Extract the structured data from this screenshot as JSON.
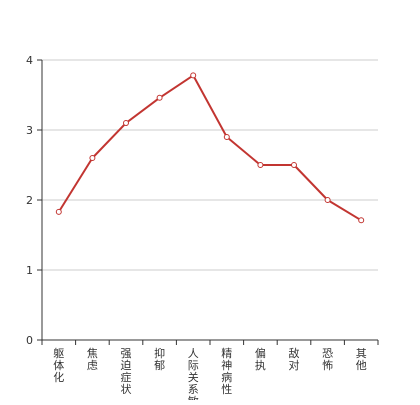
{
  "chart_data": {
    "type": "line",
    "categories": [
      "躯体化",
      "焦虑",
      "强迫症状",
      "抑郁",
      "人际关系敏感",
      "精神病性",
      "偏执",
      "敌对",
      "恐怖",
      "其他"
    ],
    "values": [
      1.83,
      2.6,
      3.1,
      3.46,
      3.78,
      2.9,
      2.5,
      2.5,
      2.0,
      1.71
    ],
    "ylim": [
      0,
      4
    ],
    "yticks": [
      0,
      1,
      2,
      3,
      4
    ],
    "grid": true,
    "title": "",
    "xlabel": "",
    "ylabel": "",
    "line_color": "#c23531",
    "marker_fill": "#ffffff",
    "grid_color": "#cccccc",
    "axis_color": "#333333"
  }
}
